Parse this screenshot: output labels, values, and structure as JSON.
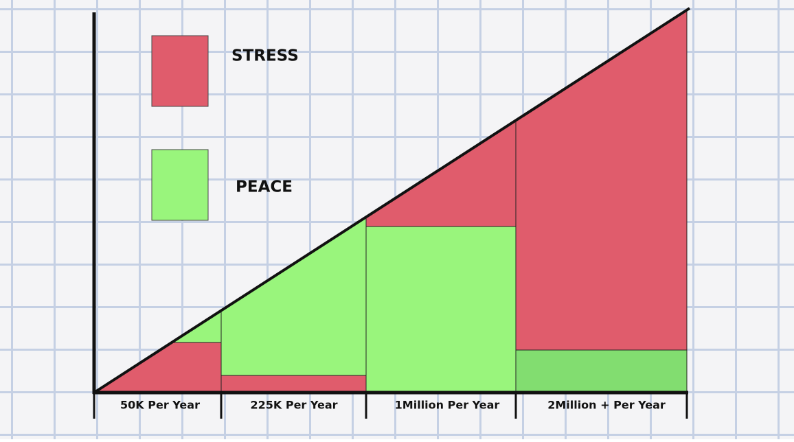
{
  "legend": {
    "items": [
      {
        "label": "STRESS"
      },
      {
        "label": "PEACE"
      }
    ]
  },
  "columns": [
    {
      "label": "50K Per Year"
    },
    {
      "label": "225K Per Year"
    },
    {
      "label": "1Million Per Year"
    },
    {
      "label": "2Million + Per Year"
    }
  ]
}
